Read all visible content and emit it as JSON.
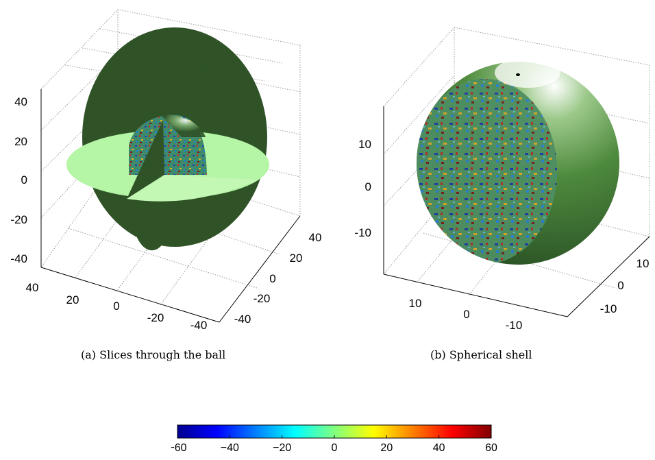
{
  "panel_a": {
    "caption": "(a) Slices through the ball",
    "z_ticks": [
      "40",
      "20",
      "0",
      "-20",
      "-40"
    ],
    "x_ticks": [
      "40",
      "20",
      "0",
      "-20",
      "-40"
    ],
    "y_ticks": [
      "40",
      "20",
      "0",
      "-20",
      "-40"
    ]
  },
  "panel_b": {
    "caption": "(b) Spherical shell",
    "z_ticks": [
      "10",
      "0",
      "-10"
    ],
    "x_ticks": [
      "10",
      "0",
      "-10"
    ],
    "y_ticks": [
      "10",
      "0",
      "-10"
    ]
  },
  "colorbar": {
    "tick_labels": [
      "−60",
      "−40",
      "−20",
      "0",
      "20",
      "40",
      "60"
    ],
    "range": [
      -60,
      60
    ],
    "colormap": "jet"
  },
  "colors": {
    "ball_green": "#2f5327",
    "slice_light": "#b4f5a6",
    "grid": "#9a9a9a"
  }
}
